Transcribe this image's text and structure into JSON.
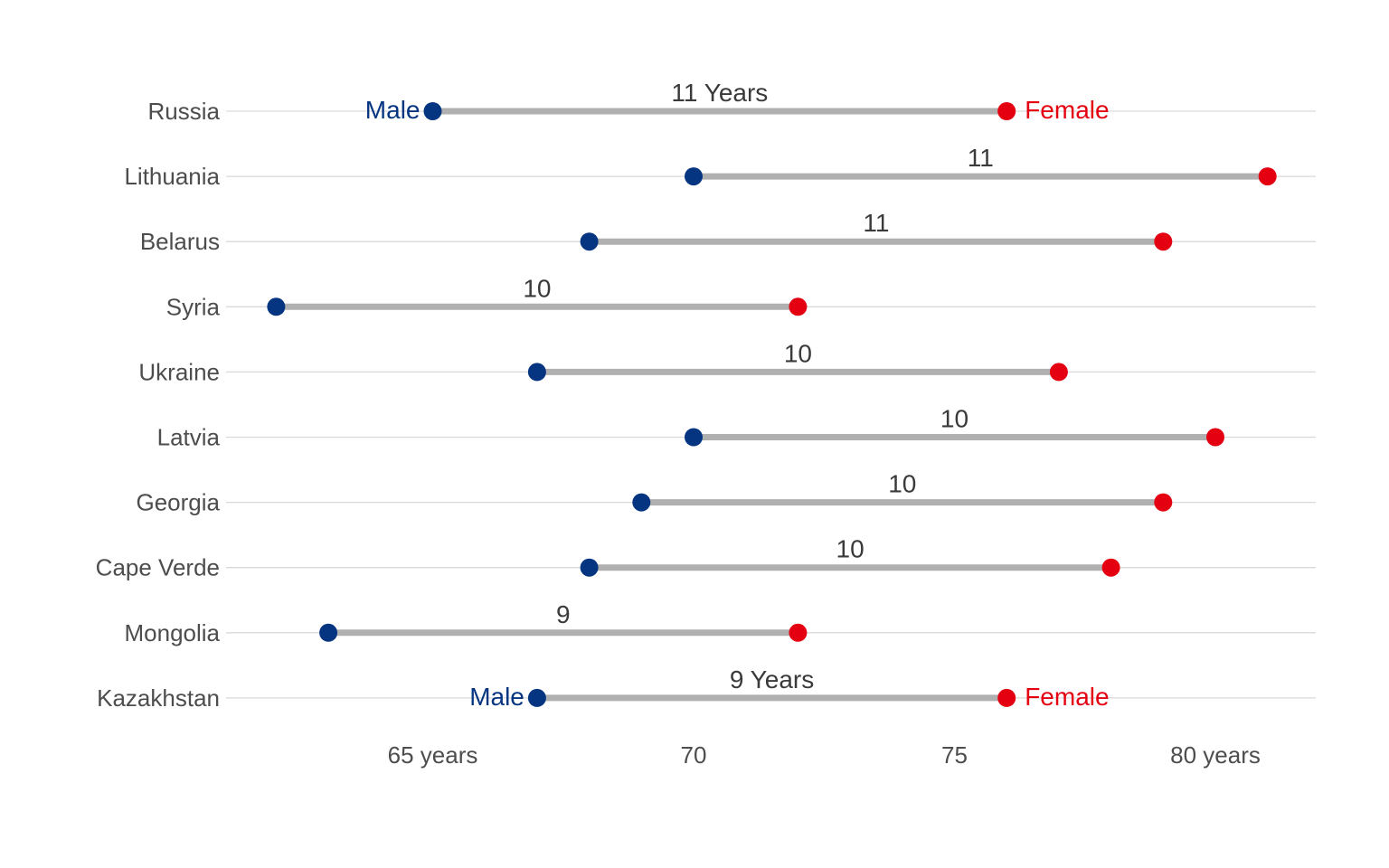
{
  "chart_data": {
    "type": "dumbbell",
    "categories": [
      "Russia",
      "Lithuania",
      "Belarus",
      "Syria",
      "Ukraine",
      "Latvia",
      "Georgia",
      "Cape Verde",
      "Mongolia",
      "Kazakhstan"
    ],
    "series": [
      {
        "name": "Male",
        "values": [
          65,
          70,
          68,
          62,
          67,
          70,
          69,
          68,
          63,
          67
        ]
      },
      {
        "name": "Female",
        "values": [
          76,
          81,
          79,
          72,
          77,
          80,
          79,
          78,
          72,
          76
        ]
      }
    ],
    "gap_labels": [
      "11 Years",
      "11",
      "11",
      "10",
      "10",
      "10",
      "10",
      "10",
      "9",
      "9 Years"
    ],
    "end_labels": {
      "male": "Male",
      "female": "Female"
    },
    "x_ticks": [
      {
        "value": 65,
        "label": "65 years"
      },
      {
        "value": 70,
        "label": "70"
      },
      {
        "value": 75,
        "label": "75"
      },
      {
        "value": 80,
        "label": "80 years"
      }
    ],
    "xlim": [
      61.8,
      81.8
    ],
    "colors": {
      "male": "#053581",
      "female": "#E40010",
      "bar": "#B0B0B0",
      "grid": "#D9D9D9"
    },
    "grid": "horizontal",
    "legend": "direct labels on first and last rows"
  }
}
